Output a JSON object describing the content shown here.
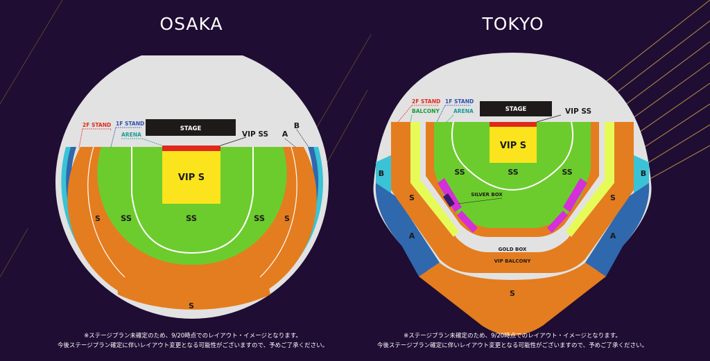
{
  "osaka": {
    "title": "OSAKA",
    "stage": "STAGE",
    "vip_s": "VIP S",
    "vip_ss": "VIP SS",
    "ss_left": "SS",
    "ss_center": "SS",
    "ss_right": "SS",
    "s_left": "S",
    "s_right": "S",
    "s_bottom": "S",
    "label_a": "A",
    "label_b": "B",
    "legend_2f": "2F STAND",
    "legend_1f": "1F STAND",
    "legend_arena": "ARENA",
    "note_line1": "※ステージプラン未確定のため、9/20時点でのレイアウト・イメージとなります。",
    "note_line2": "今後ステージプラン確定に伴いレイアウト変更となる可能性がございますので、予めご了承ください。"
  },
  "tokyo": {
    "title": "TOKYO",
    "stage": "STAGE",
    "vip_s": "VIP S",
    "vip_ss": "VIP SS",
    "ss_left": "SS",
    "ss_center": "SS",
    "ss_right": "SS",
    "s_left": "S",
    "s_right": "S",
    "s_bottom": "S",
    "a_left": "A",
    "a_right": "A",
    "b_left": "B",
    "b_right": "B",
    "silver_box": "SILVER BOX",
    "gold_box": "GOLD BOX",
    "vip_balcony": "VIP BALCONY",
    "legend_2f": "2F STAND",
    "legend_1f": "1F STAND",
    "legend_balcony": "BALCONY",
    "legend_arena": "ARENA",
    "note_line1": "※ステージプラン未確定のため、9/20時点でのレイアウト・イメージとなります。",
    "note_line2": "今後ステージプラン確定に伴いレイアウト変更となる可能性がございますので、予めご了承ください。"
  },
  "colors": {
    "background": "#1f0d33",
    "venue_gray": "#e2e2e2",
    "arena_green": "#6ccc2e",
    "stand_orange": "#e47d1f",
    "vip_yellow": "#fbe41d",
    "stage_black": "#1e1a1a",
    "vip_ss_red": "#e0281c",
    "block_a_blue": "#2f68ad",
    "block_b_cyan": "#3ac3d6",
    "balcony_lime": "#e6fb57",
    "box_magenta": "#d42fd9",
    "legend_2f_red": "#e0281c",
    "legend_1f_blue": "#2f4fb0",
    "legend_arena_teal": "#1b9a9a"
  }
}
